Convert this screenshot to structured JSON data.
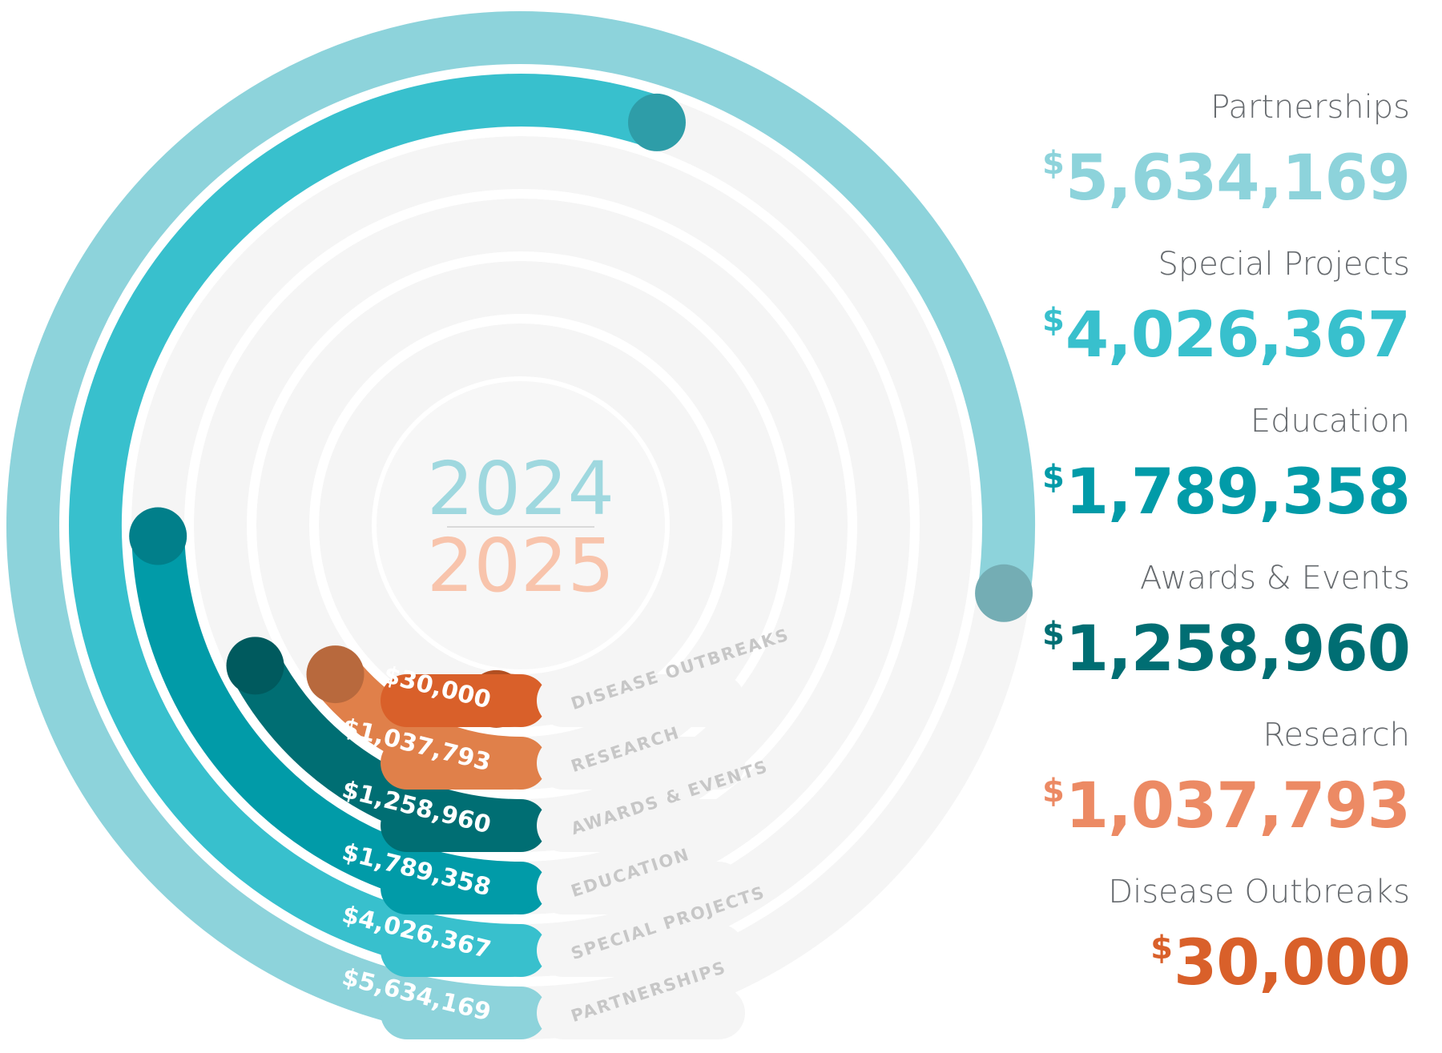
{
  "years": {
    "top": "2024",
    "bottom": "2025"
  },
  "chart_data": {
    "type": "radial_bar",
    "max_value": 5634169,
    "series": [
      {
        "name": "Partnerships",
        "ring_label": "PARTNERSHIPS",
        "value": 5634169,
        "value_text": "$5,634,169",
        "amount_text": "5,634,169",
        "color": "#8dd3db"
      },
      {
        "name": "Special Projects",
        "ring_label": "SPECIAL PROJECTS",
        "value": 4026367,
        "value_text": "$4,026,367",
        "amount_text": "4,026,367",
        "color": "#38c0cd"
      },
      {
        "name": "Education",
        "ring_label": "EDUCATION",
        "value": 1789358,
        "value_text": "$1,789,358",
        "amount_text": "1,789,358",
        "color": "#019ba8"
      },
      {
        "name": "Awards & Events",
        "ring_label": "AWARDS & EVENTS",
        "value": 1258960,
        "value_text": "$1,258,960",
        "amount_text": "1,258,960",
        "color": "#006e73"
      },
      {
        "name": "Research",
        "ring_label": "RESEARCH",
        "value": 1037793,
        "value_text": "$1,037,793",
        "amount_text": "1,037,793",
        "color": "#e0804a"
      },
      {
        "name": "Disease Outbreaks",
        "ring_label": "DISEASE OUTBREAKS",
        "value": 30000,
        "value_text": "$30,000",
        "amount_text": "30,000",
        "color": "#d9602a"
      }
    ]
  },
  "legend": {
    "currency_symbol": "$",
    "amount_colors": [
      "#8dd3db",
      "#38c0cd",
      "#019ba8",
      "#006e73",
      "#ec8a64",
      "#d9602a"
    ]
  },
  "colors": {
    "track": "#f5f5f5",
    "year_top": "#9fd8df",
    "year_bottom": "#f8c4ac",
    "center_fill": "#f7f7f7"
  }
}
